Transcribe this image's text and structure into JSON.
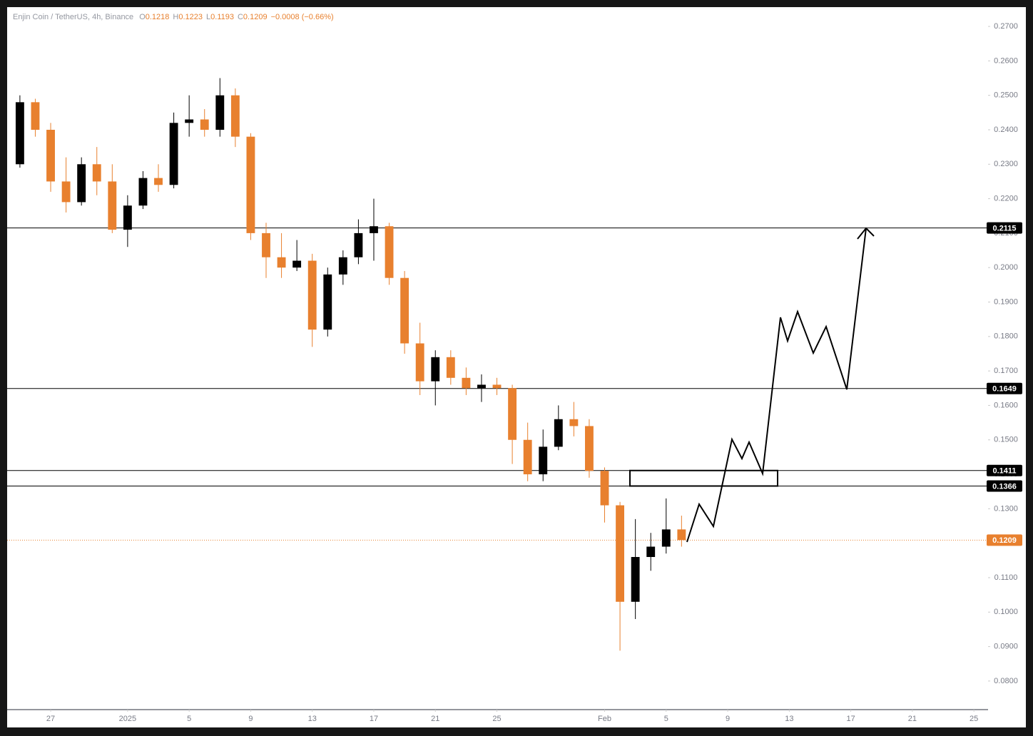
{
  "chart_data": {
    "type": "candlestick",
    "title": "Enjin Coin / TetherUS, 4h, Binance",
    "legend": [
      {
        "label": "O",
        "value": 0.1218
      },
      {
        "label": "H",
        "value": 0.1223
      },
      {
        "label": "L",
        "value": 0.1193
      },
      {
        "label": "C",
        "value": 0.1209
      }
    ],
    "change": "−0.0008 (−0.66%)",
    "up_color": "#000000",
    "down_color": "#e8802e",
    "x": [
      25,
      26,
      27,
      28,
      29,
      30,
      31,
      32,
      33,
      34,
      35,
      36,
      37,
      38,
      39,
      40,
      41,
      42,
      43,
      44,
      45,
      46,
      47,
      48,
      49,
      50,
      51,
      52,
      53,
      54,
      55,
      56,
      57,
      58,
      59,
      60,
      61,
      62,
      63,
      64,
      65,
      66,
      67,
      68
    ],
    "open": [
      0.23,
      0.248,
      0.24,
      0.225,
      0.219,
      0.23,
      0.225,
      0.211,
      0.218,
      0.226,
      0.224,
      0.242,
      0.243,
      0.24,
      0.25,
      0.238,
      0.21,
      0.203,
      0.2,
      0.202,
      0.182,
      0.198,
      0.203,
      0.21,
      0.212,
      0.197,
      0.178,
      0.167,
      0.174,
      0.168,
      0.165,
      0.166,
      0.165,
      0.15,
      0.14,
      0.148,
      0.156,
      0.154,
      0.141,
      0.131,
      0.103,
      0.116,
      0.119,
      0.124
    ],
    "high": [
      0.25,
      0.249,
      0.242,
      0.232,
      0.232,
      0.235,
      0.23,
      0.221,
      0.228,
      0.23,
      0.245,
      0.25,
      0.246,
      0.255,
      0.252,
      0.239,
      0.213,
      0.21,
      0.208,
      0.204,
      0.2,
      0.205,
      0.214,
      0.22,
      0.213,
      0.199,
      0.184,
      0.176,
      0.176,
      0.171,
      0.169,
      0.168,
      0.166,
      0.155,
      0.153,
      0.16,
      0.161,
      0.156,
      0.142,
      0.132,
      0.127,
      0.123,
      0.133,
      0.128
    ],
    "low": [
      0.229,
      0.238,
      0.222,
      0.216,
      0.218,
      0.221,
      0.21,
      0.206,
      0.217,
      0.222,
      0.223,
      0.238,
      0.238,
      0.238,
      0.235,
      0.208,
      0.197,
      0.197,
      0.199,
      0.177,
      0.18,
      0.195,
      0.201,
      0.202,
      0.195,
      0.175,
      0.163,
      0.16,
      0.166,
      0.163,
      0.161,
      0.163,
      0.143,
      0.138,
      0.138,
      0.147,
      0.151,
      0.139,
      0.126,
      0.0888,
      0.098,
      0.112,
      0.117,
      0.119
    ],
    "close": [
      0.248,
      0.24,
      0.225,
      0.219,
      0.23,
      0.225,
      0.211,
      0.218,
      0.226,
      0.224,
      0.242,
      0.243,
      0.24,
      0.25,
      0.238,
      0.21,
      0.203,
      0.2,
      0.202,
      0.182,
      0.198,
      0.203,
      0.21,
      0.212,
      0.197,
      0.178,
      0.167,
      0.174,
      0.168,
      0.165,
      0.166,
      0.165,
      0.15,
      0.14,
      0.148,
      0.156,
      0.154,
      0.141,
      0.131,
      0.103,
      0.116,
      0.119,
      0.124,
      0.1209
    ],
    "levels": [
      0.2115,
      0.1649,
      0.1411,
      0.1366
    ],
    "last_price": 0.1209,
    "xlim": [
      24.17,
      87.92
    ],
    "ylim": [
      0.0717,
      0.2756
    ],
    "xticks": [
      {
        "value": 27,
        "label": "27"
      },
      {
        "value": 32,
        "label": "2025"
      },
      {
        "value": 36,
        "label": "5"
      },
      {
        "value": 40,
        "label": "9"
      },
      {
        "value": 44,
        "label": "13"
      },
      {
        "value": 48,
        "label": "17"
      },
      {
        "value": 52,
        "label": "21"
      },
      {
        "value": 56,
        "label": "25"
      },
      {
        "value": 63,
        "label": "Feb"
      },
      {
        "value": 67,
        "label": "5"
      },
      {
        "value": 71,
        "label": "9"
      },
      {
        "value": 75,
        "label": "13"
      },
      {
        "value": 79,
        "label": "17"
      },
      {
        "value": 83,
        "label": "21"
      },
      {
        "value": 87,
        "label": "25"
      }
    ],
    "yticks": [
      {
        "value": 0.08,
        "label": "0.0800"
      },
      {
        "value": 0.09,
        "label": "0.0900"
      },
      {
        "value": 0.1,
        "label": "0.1000"
      },
      {
        "value": 0.11,
        "label": "0.1100"
      },
      {
        "value": 0.12,
        "label": "0.1200"
      },
      {
        "value": 0.13,
        "label": "0.1300"
      },
      {
        "value": 0.14,
        "label": "0.1400"
      },
      {
        "value": 0.15,
        "label": "0.1500"
      },
      {
        "value": 0.16,
        "label": "0.1600"
      },
      {
        "value": 0.17,
        "label": "0.1700"
      },
      {
        "value": 0.18,
        "label": "0.1800"
      },
      {
        "value": 0.19,
        "label": "0.1900"
      },
      {
        "value": 0.2,
        "label": "0.2000"
      },
      {
        "value": 0.21,
        "label": "0.2100"
      },
      {
        "value": 0.22,
        "label": "0.2200"
      },
      {
        "value": 0.23,
        "label": "0.2300"
      },
      {
        "value": 0.24,
        "label": "0.2400"
      },
      {
        "value": 0.25,
        "label": "0.2500"
      },
      {
        "value": 0.26,
        "label": "0.2600"
      },
      {
        "value": 0.27,
        "label": "0.2700"
      }
    ]
  }
}
